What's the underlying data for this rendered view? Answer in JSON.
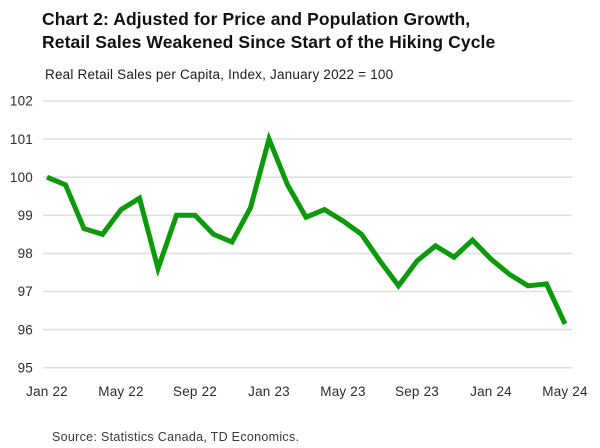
{
  "header": {
    "title_line1": "Chart 2: Adjusted for Price and Population Growth,",
    "title_line2": "Retail Sales Weakened Since Start of the Hiking Cycle",
    "subtitle": "Real Retail Sales per Capita, Index, January 2022 = 100"
  },
  "chart_data": {
    "type": "line",
    "title": "Chart 2: Adjusted for Price and Population Growth, Retail Sales Weakened Since Start of the Hiking Cycle",
    "subtitle": "Real Retail Sales per Capita, Index, January 2022 = 100",
    "x": [
      "Jan 22",
      "Feb 22",
      "Mar 22",
      "Apr 22",
      "May 22",
      "Jun 22",
      "Jul 22",
      "Aug 22",
      "Sep 22",
      "Oct 22",
      "Nov 22",
      "Dec 22",
      "Jan 23",
      "Feb 23",
      "Mar 23",
      "Apr 23",
      "May 23",
      "Jun 23",
      "Jul 23",
      "Aug 23",
      "Sep 23",
      "Oct 23",
      "Nov 23",
      "Dec 23",
      "Jan 24",
      "Feb 24",
      "Mar 24",
      "Apr 24",
      "May 24"
    ],
    "series": [
      {
        "name": "Real Retail Sales per Capita",
        "values": [
          100.0,
          99.8,
          98.65,
          98.5,
          99.15,
          99.45,
          97.6,
          99.0,
          99.0,
          98.5,
          98.3,
          99.2,
          101.0,
          99.8,
          98.95,
          99.15,
          98.85,
          98.5,
          97.8,
          97.15,
          97.8,
          98.2,
          97.9,
          98.35,
          97.85,
          97.45,
          97.15,
          97.2,
          96.15
        ]
      }
    ],
    "x_tick_labels": [
      "Jan 22",
      "May 22",
      "Sep 22",
      "Jan 23",
      "May 23",
      "Sep 23",
      "Jan 24",
      "May 24"
    ],
    "x_tick_indices": [
      0,
      4,
      8,
      12,
      16,
      20,
      24,
      28
    ],
    "y_ticks": [
      95,
      96,
      97,
      98,
      99,
      100,
      101,
      102
    ],
    "ylim": [
      95,
      102
    ],
    "grid": "horizontal",
    "legend": "none",
    "line_color": "#0a9a0a",
    "gridline_color": "#dfdfdf",
    "tick_label_color": "#2d2d2d"
  },
  "footer": {
    "source": "Source: Statistics Canada, TD Economics."
  }
}
